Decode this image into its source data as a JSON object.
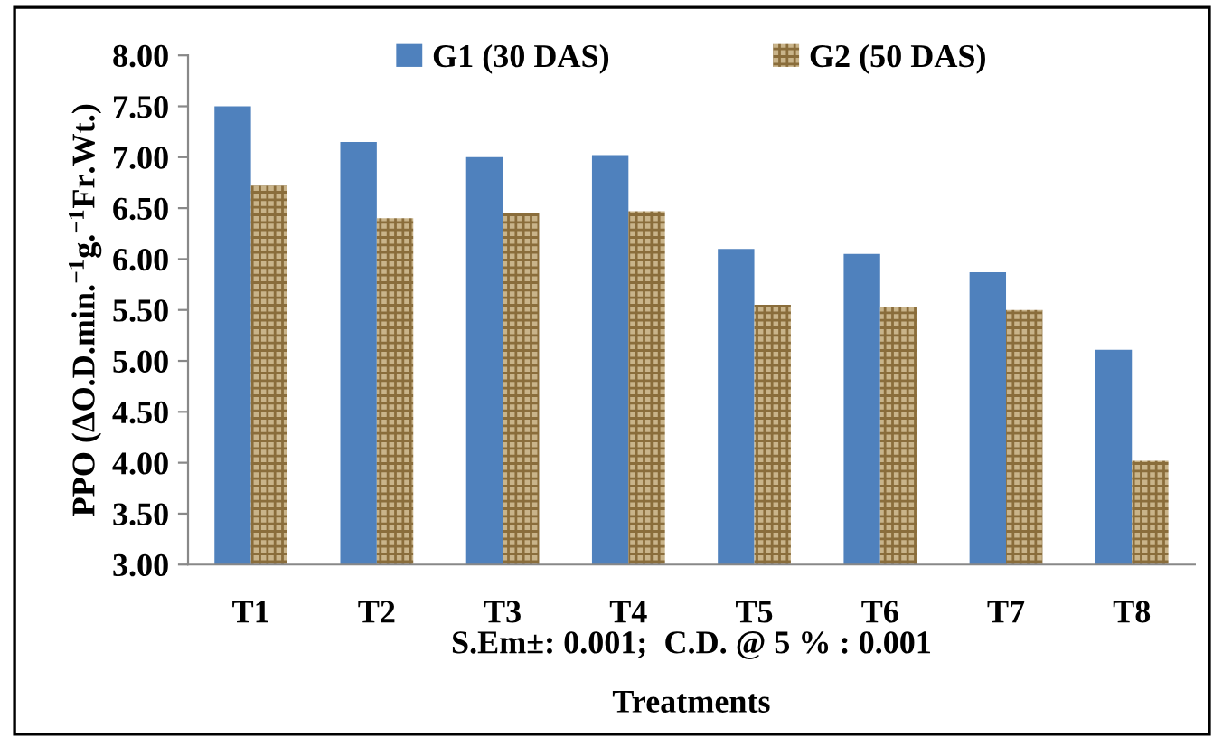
{
  "chart_data": {
    "type": "bar",
    "ylabel": "PPO (ΔO.D.min.$^{−1}$g.$^{−1}$Fr.Wt.)",
    "xlabel": "Treatments",
    "annotations": [
      "S.Em±: 0.001;  C.D. @ 5 % : 0.001"
    ],
    "categories": [
      "T1",
      "T2",
      "T3",
      "T4",
      "T5",
      "T6",
      "T7",
      "T8"
    ],
    "series": [
      {
        "name": "G1 (30 DAS)",
        "color": "#4f81bd",
        "values": [
          7.5,
          7.15,
          7.0,
          7.02,
          6.1,
          6.05,
          5.87,
          5.11
        ]
      },
      {
        "name": "G2 (50 DAS)",
        "color": "#c9b48a",
        "values": [
          6.72,
          6.4,
          6.45,
          6.47,
          5.55,
          5.53,
          5.5,
          4.02
        ]
      }
    ],
    "ylim": [
      3.0,
      8.0
    ],
    "yticks": [
      {
        "value": 3.0,
        "label": "3.00"
      },
      {
        "value": 3.5,
        "label": "3.50"
      },
      {
        "value": 4.0,
        "label": "4.00"
      },
      {
        "value": 4.5,
        "label": "4.50"
      },
      {
        "value": 5.0,
        "label": "5.00"
      },
      {
        "value": 5.5,
        "label": "5.50"
      },
      {
        "value": 6.0,
        "label": "6.00"
      },
      {
        "value": 6.5,
        "label": "6.50"
      },
      {
        "value": 7.0,
        "label": "7.00"
      },
      {
        "value": 7.5,
        "label": "7.50"
      },
      {
        "value": 8.0,
        "label": "8.00"
      }
    ],
    "grid": false,
    "legend": "top"
  }
}
